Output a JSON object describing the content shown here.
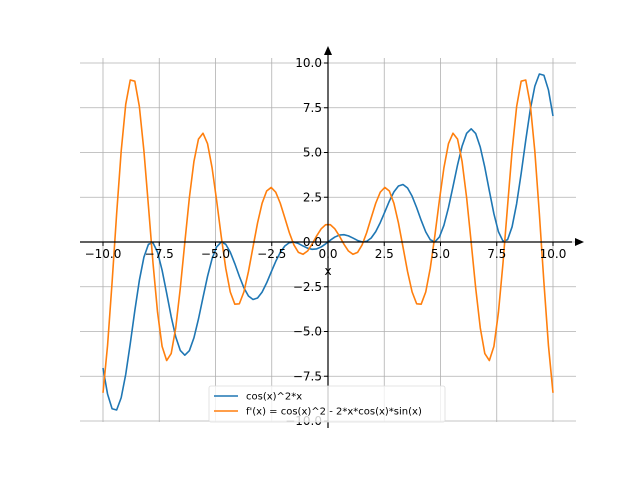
{
  "chart_data": {
    "type": "line",
    "xlim": [
      -10,
      10
    ],
    "ylim": [
      -10,
      10
    ],
    "xlabel": "x",
    "ylabel": "",
    "grid": true,
    "legend_position": "bottom-center",
    "x_ticks": [
      -10,
      -7.5,
      -5,
      -2.5,
      0,
      2.5,
      5,
      7.5,
      10
    ],
    "y_ticks": [
      -10,
      -7.5,
      -5,
      -2.5,
      0,
      2.5,
      5,
      7.5,
      10
    ],
    "x_tick_labels": [
      "−10.0",
      "−7.5",
      "−5.0",
      "−2.5",
      "0.0",
      "2.5",
      "5.0",
      "7.5",
      "10.0"
    ],
    "y_tick_labels": [
      "−10.0",
      "−7.5",
      "−5.0",
      "−2.5",
      "0.0",
      "2.5",
      "5.0",
      "7.5",
      "10.0"
    ],
    "series": [
      {
        "name": "cos(x)^2*x",
        "color": "#1f77b4",
        "expression": "cos(x)^2*x"
      },
      {
        "name": "f'(x) = cos(x)^2 - 2*x*cos(x)*sin(x)",
        "color": "#ff7f0e",
        "expression": "cos(x)^2 - 2*x*cos(x)*sin(x)"
      }
    ]
  }
}
